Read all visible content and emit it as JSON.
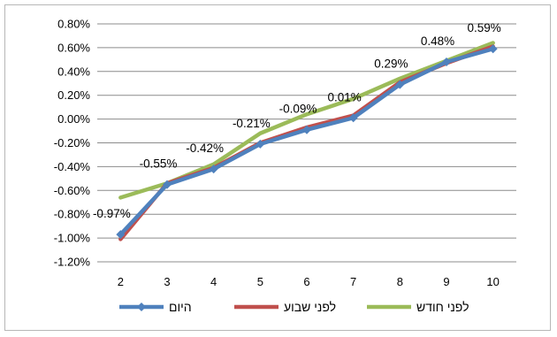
{
  "chart_data": {
    "type": "line",
    "categories": [
      "2",
      "3",
      "4",
      "5",
      "6",
      "7",
      "8",
      "9",
      "10"
    ],
    "ylim": [
      -1.2,
      0.8
    ],
    "ytick_labels": [
      "0.80%",
      "0.60%",
      "0.40%",
      "0.20%",
      "0.00%",
      "-0.20%",
      "-0.40%",
      "-0.60%",
      "-0.80%",
      "-1.00%",
      "-1.20%"
    ],
    "grid": true,
    "legend_position": "bottom",
    "series": [
      {
        "name": "היום",
        "color": "#4f81bd",
        "marker": "diamond",
        "values": [
          -0.97,
          -0.55,
          -0.42,
          -0.21,
          -0.09,
          0.01,
          0.29,
          0.48,
          0.59
        ]
      },
      {
        "name": "לפני שבוע",
        "color": "#c0504d",
        "marker": "none",
        "values": [
          -1.01,
          -0.54,
          -0.41,
          -0.2,
          -0.07,
          0.03,
          0.31,
          0.47,
          0.61
        ]
      },
      {
        "name": "לפני חודש",
        "color": "#9bbb59",
        "marker": "none",
        "values": [
          -0.66,
          -0.54,
          -0.38,
          -0.12,
          0.04,
          0.17,
          0.34,
          0.49,
          0.64
        ]
      }
    ],
    "data_labels": [
      "-0.97%",
      "-0.55%",
      "-0.42%",
      "-0.21%",
      "-0.09%",
      "0.01%",
      "0.29%",
      "0.48%",
      "0.59%"
    ]
  }
}
